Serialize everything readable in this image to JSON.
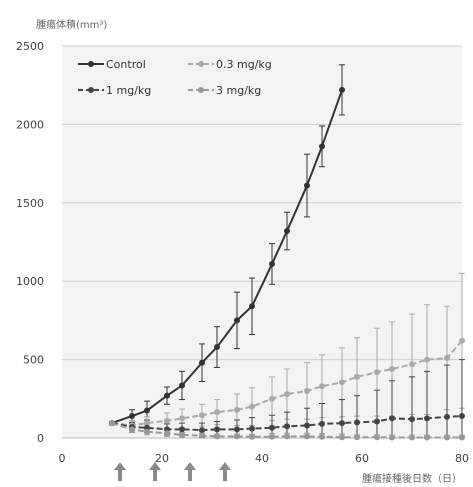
{
  "chart_data": {
    "type": "line",
    "ylabel": "腫瘍体積(mm³)",
    "xlabel": "腫瘍接種後日数（日）",
    "xlim": [
      0,
      80
    ],
    "ylim": [
      0,
      2500
    ],
    "x_ticks": [
      0,
      20,
      40,
      60,
      80
    ],
    "y_ticks": [
      0,
      500,
      1000,
      1500,
      2000,
      2500
    ],
    "grid": "horizontal",
    "legend_position": "top-left",
    "dosing_days": [
      10,
      17,
      24,
      31
    ],
    "series": [
      {
        "name": "Control",
        "color": "#333333",
        "line_style": "solid",
        "x": [
          10,
          14,
          17,
          21,
          24,
          28,
          31,
          35,
          38,
          42,
          45,
          49,
          52,
          56
        ],
        "y": [
          95,
          140,
          175,
          270,
          335,
          480,
          580,
          750,
          840,
          1110,
          1320,
          1610,
          1860,
          2220
        ],
        "error": [
          10,
          40,
          60,
          55,
          90,
          120,
          130,
          180,
          180,
          130,
          120,
          200,
          130,
          160
        ]
      },
      {
        "name": "0.3 mg/kg",
        "color": "#aaaaaa",
        "line_style": "dashed",
        "x": [
          10,
          14,
          17,
          21,
          24,
          28,
          31,
          35,
          38,
          42,
          45,
          49,
          52,
          56,
          59,
          63,
          66,
          70,
          73,
          77,
          80
        ],
        "y": [
          95,
          80,
          95,
          110,
          125,
          145,
          165,
          180,
          200,
          250,
          280,
          300,
          330,
          355,
          390,
          420,
          440,
          470,
          500,
          510,
          620
        ],
        "error": [
          10,
          30,
          40,
          50,
          60,
          70,
          80,
          100,
          120,
          140,
          160,
          180,
          200,
          220,
          250,
          280,
          300,
          320,
          350,
          330,
          430
        ]
      },
      {
        "name": "1 mg/kg",
        "color": "#444444",
        "line_style": "dashed",
        "x": [
          10,
          14,
          17,
          21,
          24,
          28,
          31,
          35,
          38,
          42,
          45,
          49,
          52,
          56,
          59,
          63,
          66,
          70,
          73,
          77,
          80
        ],
        "y": [
          95,
          70,
          65,
          55,
          55,
          50,
          55,
          55,
          60,
          65,
          75,
          80,
          90,
          95,
          100,
          105,
          125,
          120,
          125,
          135,
          140
        ],
        "error": [
          10,
          25,
          30,
          35,
          40,
          45,
          50,
          60,
          70,
          80,
          90,
          110,
          130,
          150,
          170,
          200,
          240,
          270,
          300,
          330,
          360
        ]
      },
      {
        "name": "3 mg/kg",
        "color": "#999999",
        "line_style": "dashed",
        "x": [
          10,
          14,
          17,
          21,
          24,
          28,
          31,
          35,
          38,
          42,
          45,
          49,
          52,
          56,
          59,
          63,
          66,
          70,
          73,
          77,
          80
        ],
        "y": [
          95,
          55,
          40,
          30,
          20,
          15,
          10,
          10,
          8,
          8,
          10,
          10,
          8,
          5,
          5,
          5,
          3,
          3,
          3,
          3,
          3
        ],
        "error": [
          10,
          20,
          20,
          20,
          15,
          15,
          15,
          15,
          15,
          20,
          20,
          20,
          20,
          20,
          15,
          15,
          15,
          15,
          15,
          15,
          15
        ]
      }
    ]
  }
}
